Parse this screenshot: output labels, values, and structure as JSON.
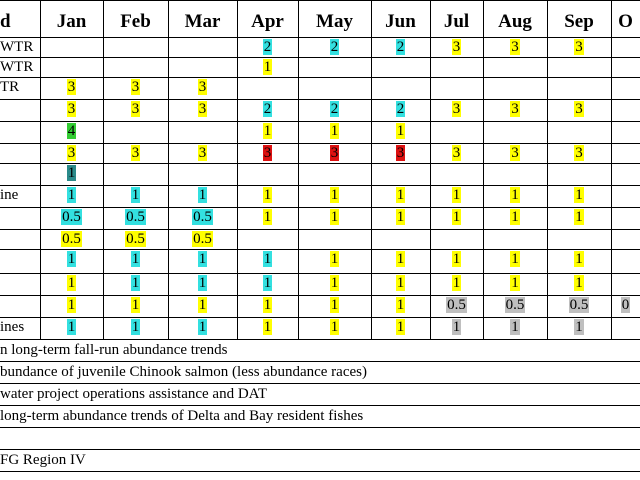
{
  "header": {
    "columns": [
      "d",
      "Jan",
      "Feb",
      "Mar",
      "Apr",
      "May",
      "Jun",
      "Jul",
      "Aug",
      "Sep",
      "O"
    ]
  },
  "colors": {
    "yellow": "#ffff00",
    "cyan": "#33e0e0",
    "green": "#33cc33",
    "red": "#dd1111",
    "teal": "#2a8a8a",
    "gray": "#bfbfbf"
  },
  "rows": [
    {
      "label": "WTR",
      "cells": [
        null,
        null,
        null,
        {
          "v": "2",
          "c": "cyan"
        },
        {
          "v": "2",
          "c": "cyan"
        },
        {
          "v": "2",
          "c": "cyan"
        },
        {
          "v": "3",
          "c": "yellow"
        },
        {
          "v": "3",
          "c": "yellow"
        },
        {
          "v": "3",
          "c": "yellow"
        },
        null
      ]
    },
    {
      "label": "WTR",
      "cells": [
        null,
        null,
        null,
        {
          "v": "1",
          "c": "yellow"
        },
        null,
        null,
        null,
        null,
        null,
        null
      ]
    },
    {
      "label": "TR",
      "cells": [
        {
          "v": "3",
          "c": "yellow"
        },
        {
          "v": "3",
          "c": "yellow"
        },
        {
          "v": "3",
          "c": "yellow"
        },
        null,
        null,
        null,
        null,
        null,
        null,
        null
      ]
    },
    {
      "label": "",
      "cells": [
        {
          "v": "3",
          "c": "yellow"
        },
        {
          "v": "3",
          "c": "yellow"
        },
        {
          "v": "3",
          "c": "yellow"
        },
        {
          "v": "2",
          "c": "cyan"
        },
        {
          "v": "2",
          "c": "cyan"
        },
        {
          "v": "2",
          "c": "cyan"
        },
        {
          "v": "3",
          "c": "yellow"
        },
        {
          "v": "3",
          "c": "yellow"
        },
        {
          "v": "3",
          "c": "yellow"
        },
        null
      ]
    },
    {
      "label": "",
      "cells": [
        {
          "v": "4",
          "c": "green"
        },
        null,
        null,
        {
          "v": "1",
          "c": "yellow"
        },
        {
          "v": "1",
          "c": "yellow"
        },
        {
          "v": "1",
          "c": "yellow"
        },
        null,
        null,
        null,
        null
      ]
    },
    {
      "label": "",
      "cells": [
        {
          "v": "3",
          "c": "yellow"
        },
        {
          "v": "3",
          "c": "yellow"
        },
        {
          "v": "3",
          "c": "yellow"
        },
        {
          "v": "3",
          "c": "red"
        },
        {
          "v": "3",
          "c": "red"
        },
        {
          "v": "3",
          "c": "red"
        },
        {
          "v": "3",
          "c": "yellow"
        },
        {
          "v": "3",
          "c": "yellow"
        },
        {
          "v": "3",
          "c": "yellow"
        },
        null
      ]
    },
    {
      "label": "",
      "cells": [
        {
          "v": "1",
          "c": "teal"
        },
        null,
        null,
        null,
        null,
        null,
        null,
        null,
        null,
        null
      ]
    },
    {
      "label": "ine",
      "cells": [
        {
          "v": "1",
          "c": "cyan"
        },
        {
          "v": "1",
          "c": "cyan"
        },
        {
          "v": "1",
          "c": "cyan"
        },
        {
          "v": "1",
          "c": "yellow"
        },
        {
          "v": "1",
          "c": "yellow"
        },
        {
          "v": "1",
          "c": "yellow"
        },
        {
          "v": "1",
          "c": "yellow"
        },
        {
          "v": "1",
          "c": "yellow"
        },
        {
          "v": "1",
          "c": "yellow"
        },
        null
      ]
    },
    {
      "label": "",
      "cells": [
        {
          "v": "0.5",
          "c": "cyan"
        },
        {
          "v": "0.5",
          "c": "cyan"
        },
        {
          "v": "0.5",
          "c": "cyan"
        },
        {
          "v": "1",
          "c": "yellow"
        },
        {
          "v": "1",
          "c": "yellow"
        },
        {
          "v": "1",
          "c": "yellow"
        },
        {
          "v": "1",
          "c": "yellow"
        },
        {
          "v": "1",
          "c": "yellow"
        },
        {
          "v": "1",
          "c": "yellow"
        },
        null
      ]
    },
    {
      "label": "",
      "cells": [
        {
          "v": "0.5",
          "c": "yellow"
        },
        {
          "v": "0.5",
          "c": "yellow"
        },
        {
          "v": "0.5",
          "c": "yellow"
        },
        null,
        null,
        null,
        null,
        null,
        null,
        null
      ]
    },
    {
      "label": "",
      "cells": [
        {
          "v": "1",
          "c": "cyan"
        },
        {
          "v": "1",
          "c": "cyan"
        },
        {
          "v": "1",
          "c": "cyan"
        },
        {
          "v": "1",
          "c": "cyan"
        },
        {
          "v": "1",
          "c": "yellow"
        },
        {
          "v": "1",
          "c": "yellow"
        },
        {
          "v": "1",
          "c": "yellow"
        },
        {
          "v": "1",
          "c": "yellow"
        },
        {
          "v": "1",
          "c": "yellow"
        },
        null
      ]
    },
    {
      "label": "",
      "cells": [
        {
          "v": "1",
          "c": "yellow"
        },
        {
          "v": "1",
          "c": "cyan"
        },
        {
          "v": "1",
          "c": "cyan"
        },
        {
          "v": "1",
          "c": "cyan"
        },
        {
          "v": "1",
          "c": "yellow"
        },
        {
          "v": "1",
          "c": "yellow"
        },
        {
          "v": "1",
          "c": "yellow"
        },
        {
          "v": "1",
          "c": "yellow"
        },
        {
          "v": "1",
          "c": "yellow"
        },
        null
      ]
    },
    {
      "label": "",
      "cells": [
        {
          "v": "1",
          "c": "yellow"
        },
        {
          "v": "1",
          "c": "yellow"
        },
        {
          "v": "1",
          "c": "yellow"
        },
        {
          "v": "1",
          "c": "yellow"
        },
        {
          "v": "1",
          "c": "yellow"
        },
        {
          "v": "1",
          "c": "yellow"
        },
        {
          "v": "0.5",
          "c": "gray"
        },
        {
          "v": "0.5",
          "c": "gray"
        },
        {
          "v": "0.5",
          "c": "gray"
        },
        {
          "v": "0",
          "c": "gray"
        }
      ]
    },
    {
      "label": "ines",
      "cells": [
        {
          "v": "1",
          "c": "cyan"
        },
        {
          "v": "1",
          "c": "cyan"
        },
        {
          "v": "1",
          "c": "cyan"
        },
        {
          "v": "1",
          "c": "yellow"
        },
        {
          "v": "1",
          "c": "yellow"
        },
        {
          "v": "1",
          "c": "yellow"
        },
        {
          "v": "1",
          "c": "gray"
        },
        {
          "v": "1",
          "c": "gray"
        },
        {
          "v": "1",
          "c": "gray"
        },
        null
      ]
    }
  ],
  "notes": [
    "n long-term fall-run abundance trends",
    "bundance of juvenile Chinook salmon (less abundance races)",
    " water project operations assistance and DAT",
    " long-term abundance trends of Delta and Bay resident fishes",
    "",
    "FG Region IV"
  ]
}
